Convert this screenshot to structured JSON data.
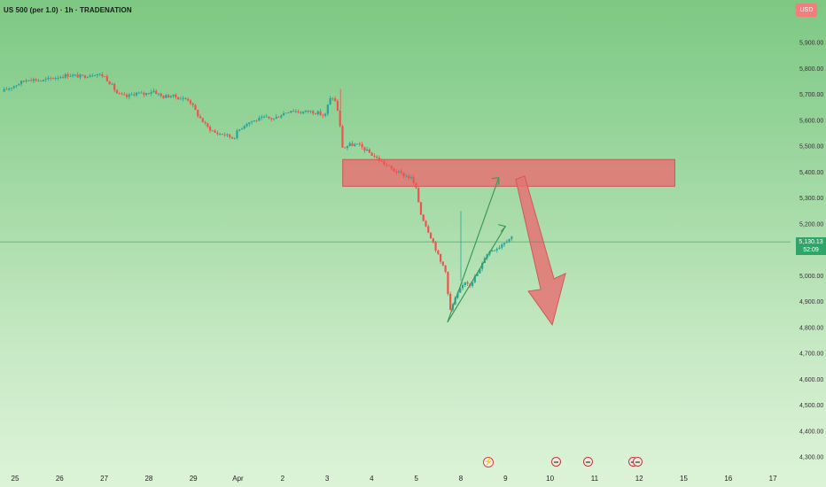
{
  "header": {
    "title": "US 500 (per 1.0) · 1h · TRADENATION"
  },
  "currency": "USD",
  "price_tag": {
    "price": "5,130.13",
    "countdown": "52:09"
  },
  "colors": {
    "up": "#26a69a",
    "down": "#ef5350",
    "zone_fill": "#e57373",
    "zone_stroke": "#d05555",
    "arrow_fill": "#e57373",
    "line": "#3a9b5a",
    "current_price": "#2fa56a"
  },
  "events": [
    {
      "icon": "lightning-icon",
      "date": "8/9"
    },
    {
      "icon": "flag-icon",
      "date": "10"
    },
    {
      "icon": "flag-icon",
      "date": "11"
    },
    {
      "icon": "flag-icon",
      "date": "12"
    },
    {
      "icon": "flag-icon",
      "date": "12"
    }
  ],
  "chart_data": {
    "type": "candlestick",
    "title": "US 500 (per 1.0) · 1h · TRADENATION",
    "y_ticks": [
      "5,900.00",
      "5,800.00",
      "5,700.00",
      "5,600.00",
      "5,500.00",
      "5,400.00",
      "5,300.00",
      "5,200.00",
      "5,100.00",
      "5,000.00",
      "4,900.00",
      "4,800.00",
      "4,700.00",
      "4,600.00",
      "4,500.00",
      "4,400.00",
      "4,300.00"
    ],
    "ylim": [
      4280,
      5960
    ],
    "x_ticks": [
      {
        "label": "25",
        "day": 0
      },
      {
        "label": "26",
        "day": 1
      },
      {
        "label": "27",
        "day": 2
      },
      {
        "label": "28",
        "day": 3
      },
      {
        "label": "29",
        "day": 4
      },
      {
        "label": "Apr",
        "day": 5
      },
      {
        "label": "2",
        "day": 6
      },
      {
        "label": "3",
        "day": 7
      },
      {
        "label": "4",
        "day": 8
      },
      {
        "label": "5",
        "day": 9
      },
      {
        "label": "8",
        "day": 10
      },
      {
        "label": "9",
        "day": 11
      },
      {
        "label": "10",
        "day": 12
      },
      {
        "label": "11",
        "day": 13
      },
      {
        "label": "12",
        "day": 14
      },
      {
        "label": "15",
        "day": 15
      },
      {
        "label": "16",
        "day": 16
      },
      {
        "label": "17",
        "day": 17
      }
    ],
    "close_path": [
      [
        -0.3,
        5710
      ],
      [
        0.0,
        5735
      ],
      [
        0.3,
        5760
      ],
      [
        0.6,
        5752
      ],
      [
        0.9,
        5765
      ],
      [
        1.2,
        5775
      ],
      [
        1.5,
        5768
      ],
      [
        1.8,
        5780
      ],
      [
        2.0,
        5770
      ],
      [
        2.15,
        5740
      ],
      [
        2.3,
        5700
      ],
      [
        2.5,
        5690
      ],
      [
        2.7,
        5705
      ],
      [
        2.9,
        5700
      ],
      [
        3.1,
        5715
      ],
      [
        3.3,
        5690
      ],
      [
        3.5,
        5695
      ],
      [
        3.7,
        5685
      ],
      [
        3.9,
        5680
      ],
      [
        4.1,
        5620
      ],
      [
        4.3,
        5575
      ],
      [
        4.5,
        5550
      ],
      [
        4.7,
        5545
      ],
      [
        4.9,
        5530
      ],
      [
        5.0,
        5560
      ],
      [
        5.2,
        5590
      ],
      [
        5.4,
        5600
      ],
      [
        5.6,
        5610
      ],
      [
        5.8,
        5605
      ],
      [
        6.0,
        5625
      ],
      [
        6.2,
        5640
      ],
      [
        6.4,
        5630
      ],
      [
        6.6,
        5635
      ],
      [
        6.8,
        5628
      ],
      [
        6.95,
        5615
      ],
      [
        7.05,
        5680
      ],
      [
        7.15,
        5690
      ],
      [
        7.25,
        5630
      ],
      [
        7.35,
        5490
      ],
      [
        7.5,
        5505
      ],
      [
        7.7,
        5505
      ],
      [
        7.9,
        5480
      ],
      [
        8.1,
        5455
      ],
      [
        8.3,
        5430
      ],
      [
        8.5,
        5405
      ],
      [
        8.7,
        5390
      ],
      [
        8.9,
        5375
      ],
      [
        9.0,
        5330
      ],
      [
        9.1,
        5240
      ],
      [
        9.25,
        5180
      ],
      [
        9.4,
        5120
      ],
      [
        9.55,
        5050
      ],
      [
        9.65,
        5030
      ],
      [
        9.75,
        4860
      ],
      [
        9.9,
        4920
      ],
      [
        10.1,
        4980
      ],
      [
        10.2,
        4965
      ],
      [
        10.3,
        4990
      ],
      [
        10.45,
        5030
      ],
      [
        10.55,
        5080
      ],
      [
        10.7,
        5100
      ],
      [
        10.85,
        5110
      ],
      [
        11.0,
        5135
      ],
      [
        11.15,
        5150
      ]
    ],
    "series": [
      {
        "name": "supply_zone",
        "type": "rect",
        "x": [
          7.35,
          14.8
        ],
        "y": [
          5345,
          5448
        ]
      },
      {
        "name": "trendline",
        "type": "line",
        "x": [
          9.7,
          11.0
        ],
        "y": [
          4820,
          5190
        ]
      },
      {
        "name": "projection_up",
        "type": "arrow",
        "x": [
          9.7,
          10.85
        ],
        "y": [
          4820,
          5378
        ]
      },
      {
        "name": "projection_down",
        "type": "arrow",
        "x": [
          11.35,
          12.05
        ],
        "y": [
          5378,
          4810
        ]
      }
    ],
    "current_price": 5130.13,
    "countdown": "52:09",
    "axis_currency": "USD"
  }
}
